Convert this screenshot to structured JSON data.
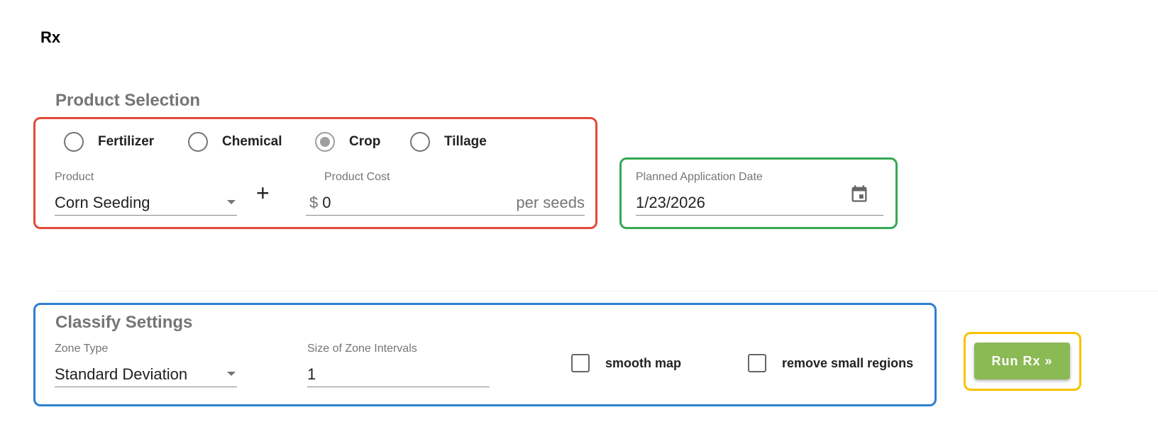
{
  "title": "Rx",
  "product_selection": {
    "heading": "Product Selection",
    "types": [
      {
        "label": "Fertilizer",
        "selected": false
      },
      {
        "label": "Chemical",
        "selected": false
      },
      {
        "label": "Crop",
        "selected": true
      },
      {
        "label": "Tillage",
        "selected": false
      }
    ],
    "product_label": "Product",
    "product_value": "Corn Seeding",
    "plus": "+",
    "cost_label": "Product Cost",
    "cost_prefix": "$",
    "cost_value": "0",
    "cost_suffix": "per seeds"
  },
  "date": {
    "label": "Planned Application Date",
    "value": "1/23/2026",
    "icon": "calendar-icon"
  },
  "classify": {
    "heading": "Classify Settings",
    "zone_type_label": "Zone Type",
    "zone_type_value": "Standard Deviation",
    "interval_label": "Size of Zone Intervals",
    "interval_value": "1",
    "smooth_label": "smooth map",
    "smooth_checked": false,
    "remove_label": "remove small regions",
    "remove_checked": false
  },
  "run_button": "Run Rx »",
  "colors": {
    "red": "#e04b3a",
    "green": "#35a853",
    "blue": "#2f7fcf",
    "yellow": "#f8c300",
    "button": "#8bb954"
  }
}
